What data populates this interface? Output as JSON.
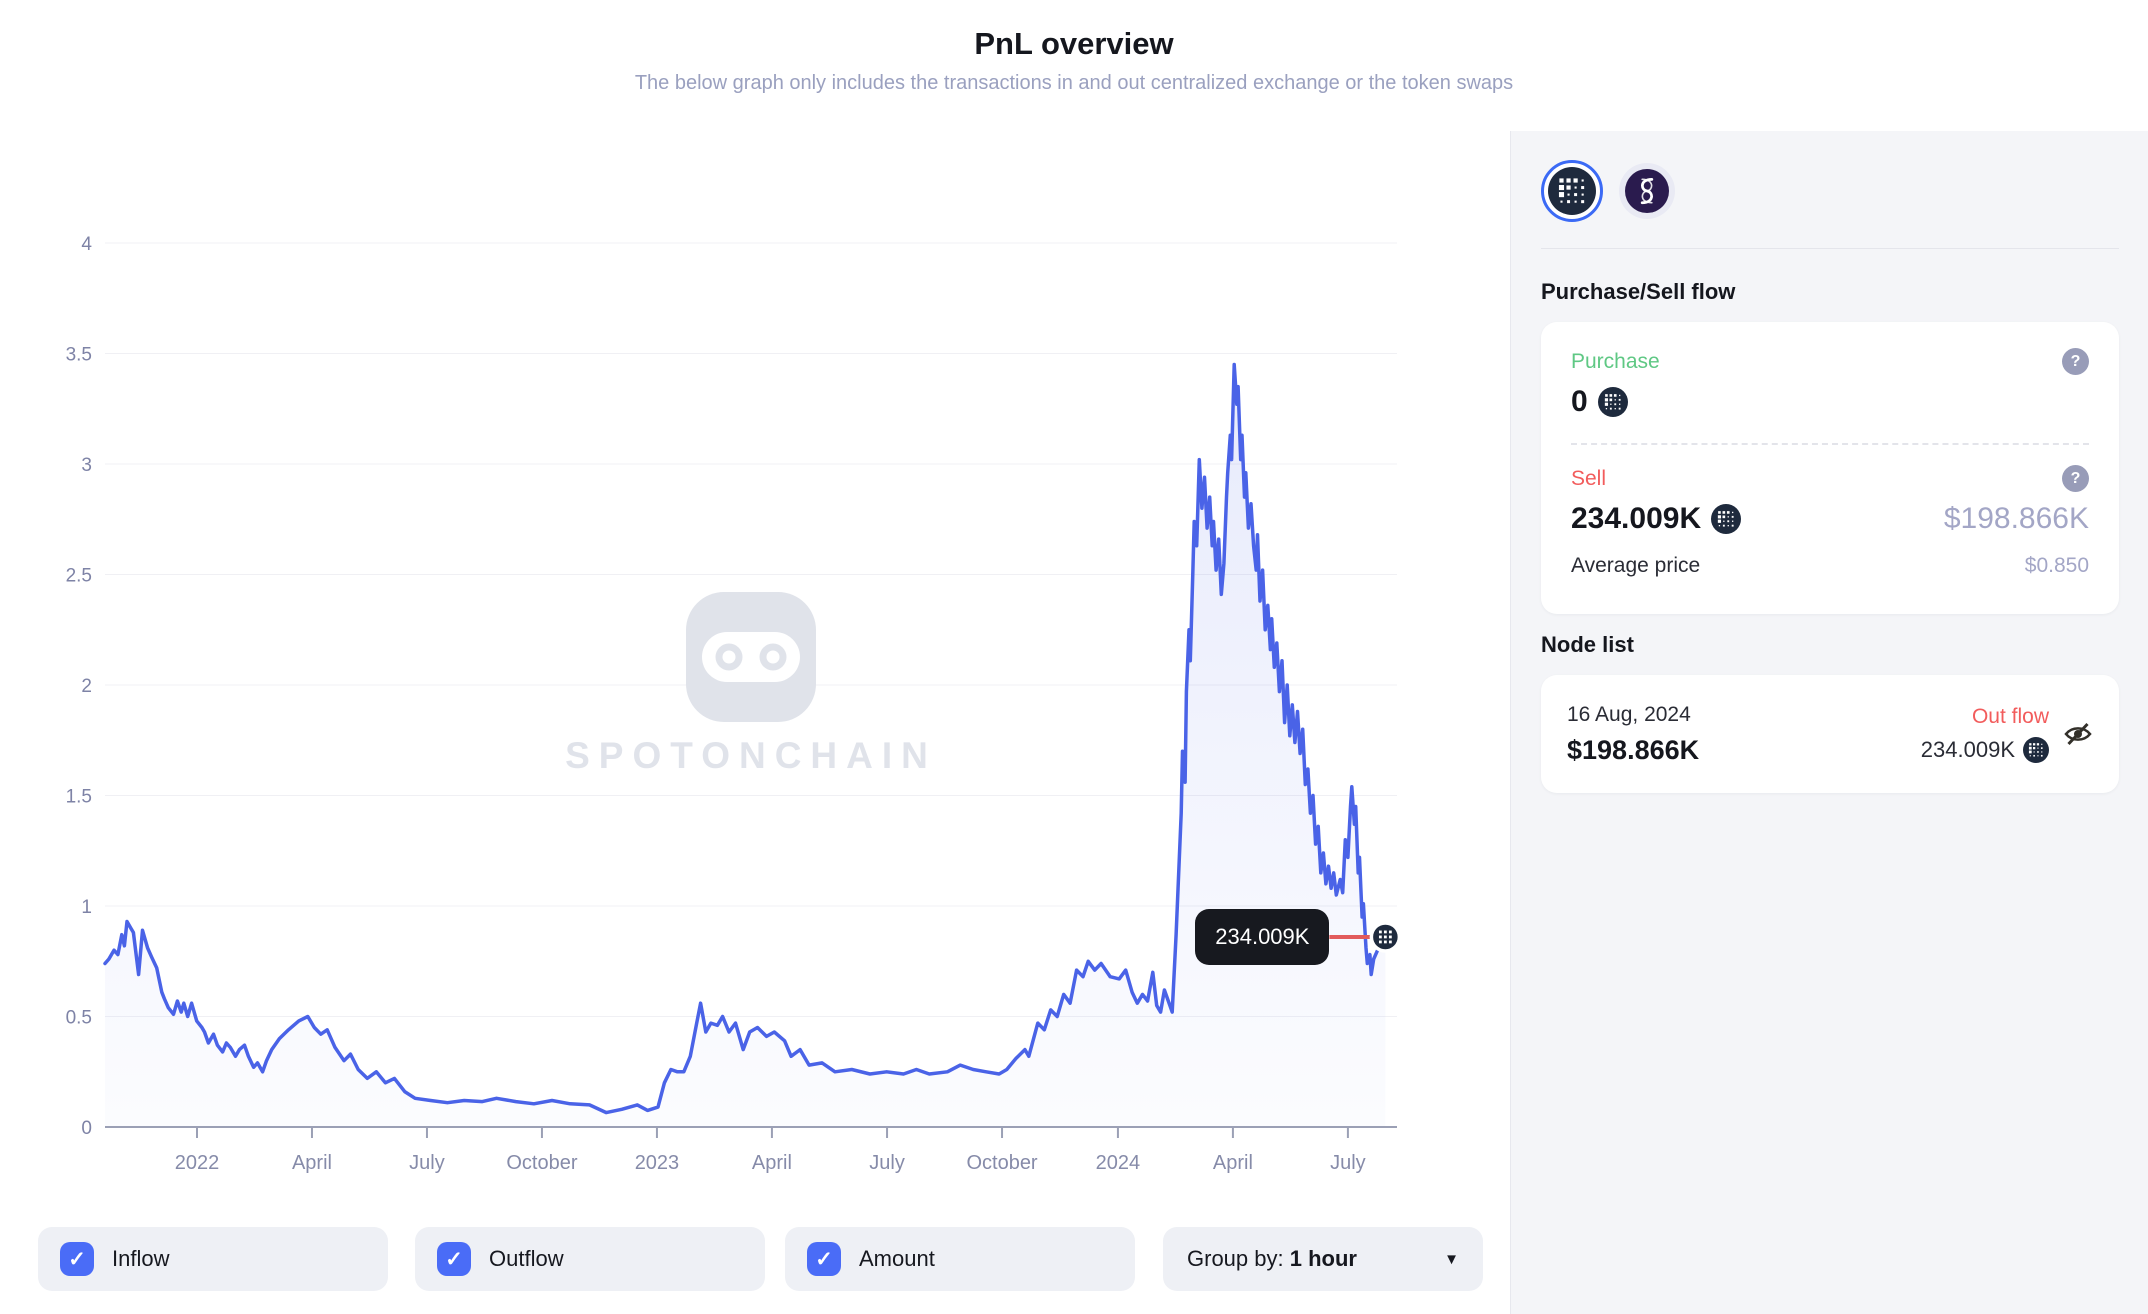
{
  "header": {
    "title": "PnL overview",
    "subtitle": "The below graph only includes the transactions in and out centralized exchange or the token swaps"
  },
  "colors": {
    "line": "#4a63e7",
    "accent_blue": "#4a6cf7",
    "green": "#5fc884",
    "red": "#f25c5c",
    "muted_purple": "#a3a6c6",
    "panel_bg": "#f4f5f8",
    "tooltip_bg": "#17191f"
  },
  "watermark": {
    "brand": "SPOTONCHAIN",
    "icon": "spotonchain-logo"
  },
  "chart_data": {
    "type": "line",
    "title": "PnL overview price history",
    "xlabel": "",
    "ylabel": "",
    "ylim": [
      0,
      4
    ],
    "grid": true,
    "legend_position": "none",
    "yticks": [
      0,
      0.5,
      1,
      1.5,
      2,
      2.5,
      3,
      3.5,
      4
    ],
    "ytick_labels": [
      "0",
      "0.5",
      "1",
      "1.5",
      "2",
      "2.5",
      "3",
      "3.5",
      "4"
    ],
    "xticks": [
      {
        "label": "2022",
        "t": 0.0712
      },
      {
        "label": "April",
        "t": 0.1602
      },
      {
        "label": "July",
        "t": 0.2492
      },
      {
        "label": "October",
        "t": 0.3382
      },
      {
        "label": "2023",
        "t": 0.4272
      },
      {
        "label": "April",
        "t": 0.5162
      },
      {
        "label": "July",
        "t": 0.6053
      },
      {
        "label": "October",
        "t": 0.6943
      },
      {
        "label": "2024",
        "t": 0.784
      },
      {
        "label": "April",
        "t": 0.873
      },
      {
        "label": "July",
        "t": 0.962
      }
    ],
    "series": [
      {
        "name": "price",
        "points": [
          [
            0.0,
            0.74
          ],
          [
            0.003,
            0.76
          ],
          [
            0.007,
            0.8
          ],
          [
            0.01,
            0.78
          ],
          [
            0.013,
            0.87
          ],
          [
            0.015,
            0.82
          ],
          [
            0.017,
            0.93
          ],
          [
            0.02,
            0.9
          ],
          [
            0.022,
            0.88
          ],
          [
            0.026,
            0.69
          ],
          [
            0.029,
            0.89
          ],
          [
            0.033,
            0.81
          ],
          [
            0.036,
            0.77
          ],
          [
            0.04,
            0.72
          ],
          [
            0.044,
            0.61
          ],
          [
            0.046,
            0.58
          ],
          [
            0.049,
            0.54
          ],
          [
            0.053,
            0.51
          ],
          [
            0.056,
            0.57
          ],
          [
            0.059,
            0.52
          ],
          [
            0.061,
            0.56
          ],
          [
            0.064,
            0.5
          ],
          [
            0.067,
            0.56
          ],
          [
            0.071,
            0.48
          ],
          [
            0.075,
            0.45
          ],
          [
            0.077,
            0.43
          ],
          [
            0.08,
            0.38
          ],
          [
            0.084,
            0.42
          ],
          [
            0.087,
            0.37
          ],
          [
            0.091,
            0.34
          ],
          [
            0.094,
            0.38
          ],
          [
            0.097,
            0.36
          ],
          [
            0.101,
            0.32
          ],
          [
            0.104,
            0.35
          ],
          [
            0.108,
            0.37
          ],
          [
            0.111,
            0.32
          ],
          [
            0.115,
            0.27
          ],
          [
            0.118,
            0.29
          ],
          [
            0.122,
            0.25
          ],
          [
            0.125,
            0.3
          ],
          [
            0.129,
            0.35
          ],
          [
            0.135,
            0.4
          ],
          [
            0.142,
            0.44
          ],
          [
            0.15,
            0.48
          ],
          [
            0.157,
            0.5
          ],
          [
            0.162,
            0.45
          ],
          [
            0.167,
            0.42
          ],
          [
            0.172,
            0.44
          ],
          [
            0.178,
            0.36
          ],
          [
            0.185,
            0.3
          ],
          [
            0.19,
            0.33
          ],
          [
            0.196,
            0.26
          ],
          [
            0.203,
            0.22
          ],
          [
            0.21,
            0.25
          ],
          [
            0.217,
            0.2
          ],
          [
            0.224,
            0.22
          ],
          [
            0.232,
            0.16
          ],
          [
            0.24,
            0.13
          ],
          [
            0.252,
            0.12
          ],
          [
            0.265,
            0.11
          ],
          [
            0.278,
            0.12
          ],
          [
            0.292,
            0.115
          ],
          [
            0.303,
            0.13
          ],
          [
            0.318,
            0.115
          ],
          [
            0.332,
            0.105
          ],
          [
            0.346,
            0.12
          ],
          [
            0.36,
            0.105
          ],
          [
            0.375,
            0.1
          ],
          [
            0.388,
            0.065
          ],
          [
            0.4,
            0.08
          ],
          [
            0.412,
            0.1
          ],
          [
            0.42,
            0.075
          ],
          [
            0.428,
            0.09
          ],
          [
            0.433,
            0.2
          ],
          [
            0.438,
            0.26
          ],
          [
            0.443,
            0.25
          ],
          [
            0.448,
            0.25
          ],
          [
            0.453,
            0.32
          ],
          [
            0.458,
            0.47
          ],
          [
            0.461,
            0.56
          ],
          [
            0.465,
            0.43
          ],
          [
            0.469,
            0.47
          ],
          [
            0.474,
            0.46
          ],
          [
            0.478,
            0.5
          ],
          [
            0.483,
            0.43
          ],
          [
            0.488,
            0.47
          ],
          [
            0.494,
            0.35
          ],
          [
            0.499,
            0.43
          ],
          [
            0.505,
            0.45
          ],
          [
            0.512,
            0.41
          ],
          [
            0.518,
            0.43
          ],
          [
            0.526,
            0.39
          ],
          [
            0.531,
            0.32
          ],
          [
            0.538,
            0.35
          ],
          [
            0.545,
            0.28
          ],
          [
            0.555,
            0.29
          ],
          [
            0.565,
            0.25
          ],
          [
            0.578,
            0.26
          ],
          [
            0.592,
            0.24
          ],
          [
            0.605,
            0.25
          ],
          [
            0.618,
            0.24
          ],
          [
            0.628,
            0.26
          ],
          [
            0.638,
            0.24
          ],
          [
            0.652,
            0.25
          ],
          [
            0.662,
            0.28
          ],
          [
            0.672,
            0.26
          ],
          [
            0.682,
            0.25
          ],
          [
            0.692,
            0.24
          ],
          [
            0.698,
            0.26
          ],
          [
            0.705,
            0.31
          ],
          [
            0.712,
            0.35
          ],
          [
            0.715,
            0.32
          ],
          [
            0.722,
            0.47
          ],
          [
            0.727,
            0.44
          ],
          [
            0.732,
            0.53
          ],
          [
            0.737,
            0.5
          ],
          [
            0.742,
            0.6
          ],
          [
            0.747,
            0.56
          ],
          [
            0.752,
            0.71
          ],
          [
            0.757,
            0.68
          ],
          [
            0.761,
            0.75
          ],
          [
            0.766,
            0.71
          ],
          [
            0.771,
            0.74
          ],
          [
            0.778,
            0.68
          ],
          [
            0.785,
            0.67
          ],
          [
            0.79,
            0.71
          ],
          [
            0.795,
            0.61
          ],
          [
            0.799,
            0.56
          ],
          [
            0.803,
            0.6
          ],
          [
            0.807,
            0.57
          ],
          [
            0.811,
            0.7
          ],
          [
            0.814,
            0.55
          ],
          [
            0.817,
            0.52
          ],
          [
            0.82,
            0.62
          ],
          [
            0.823,
            0.57
          ],
          [
            0.826,
            0.52
          ],
          [
            0.829,
            0.87
          ],
          [
            0.831,
            1.15
          ],
          [
            0.833,
            1.42
          ],
          [
            0.834,
            1.7
          ],
          [
            0.836,
            1.56
          ],
          [
            0.837,
            1.97
          ],
          [
            0.839,
            2.25
          ],
          [
            0.84,
            2.11
          ],
          [
            0.842,
            2.52
          ],
          [
            0.843,
            2.74
          ],
          [
            0.845,
            2.63
          ],
          [
            0.847,
            3.02
          ],
          [
            0.849,
            2.8
          ],
          [
            0.851,
            2.94
          ],
          [
            0.853,
            2.71
          ],
          [
            0.855,
            2.85
          ],
          [
            0.857,
            2.63
          ],
          [
            0.858,
            2.74
          ],
          [
            0.86,
            2.52
          ],
          [
            0.862,
            2.66
          ],
          [
            0.864,
            2.41
          ],
          [
            0.866,
            2.55
          ],
          [
            0.868,
            2.85
          ],
          [
            0.869,
            2.96
          ],
          [
            0.871,
            3.13
          ],
          [
            0.872,
            3.02
          ],
          [
            0.874,
            3.45
          ],
          [
            0.876,
            3.27
          ],
          [
            0.877,
            3.35
          ],
          [
            0.879,
            3.02
          ],
          [
            0.88,
            3.13
          ],
          [
            0.882,
            2.85
          ],
          [
            0.883,
            2.96
          ],
          [
            0.885,
            2.71
          ],
          [
            0.887,
            2.82
          ],
          [
            0.889,
            2.63
          ],
          [
            0.891,
            2.52
          ],
          [
            0.892,
            2.68
          ],
          [
            0.894,
            2.38
          ],
          [
            0.896,
            2.52
          ],
          [
            0.898,
            2.25
          ],
          [
            0.9,
            2.36
          ],
          [
            0.902,
            2.16
          ],
          [
            0.903,
            2.3
          ],
          [
            0.905,
            2.08
          ],
          [
            0.907,
            2.19
          ],
          [
            0.909,
            1.97
          ],
          [
            0.911,
            2.11
          ],
          [
            0.913,
            1.83
          ],
          [
            0.915,
            2.0
          ],
          [
            0.917,
            1.77
          ],
          [
            0.919,
            1.91
          ],
          [
            0.921,
            1.74
          ],
          [
            0.923,
            1.88
          ],
          [
            0.925,
            1.69
          ],
          [
            0.927,
            1.8
          ],
          [
            0.929,
            1.55
          ],
          [
            0.931,
            1.62
          ],
          [
            0.933,
            1.42
          ],
          [
            0.935,
            1.5
          ],
          [
            0.937,
            1.28
          ],
          [
            0.939,
            1.36
          ],
          [
            0.941,
            1.15
          ],
          [
            0.943,
            1.24
          ],
          [
            0.945,
            1.1
          ],
          [
            0.947,
            1.18
          ],
          [
            0.949,
            1.08
          ],
          [
            0.951,
            1.15
          ],
          [
            0.953,
            1.05
          ],
          [
            0.956,
            1.12
          ],
          [
            0.958,
            1.06
          ],
          [
            0.96,
            1.3
          ],
          [
            0.962,
            1.22
          ],
          [
            0.964,
            1.45
          ],
          [
            0.965,
            1.54
          ],
          [
            0.967,
            1.37
          ],
          [
            0.968,
            1.45
          ],
          [
            0.97,
            1.15
          ],
          [
            0.971,
            1.22
          ],
          [
            0.973,
            0.95
          ],
          [
            0.974,
            1.01
          ],
          [
            0.976,
            0.81
          ],
          [
            0.977,
            0.74
          ],
          [
            0.979,
            0.78
          ],
          [
            0.98,
            0.69
          ],
          [
            0.982,
            0.76
          ],
          [
            0.985,
            0.8
          ],
          [
            0.988,
            0.84
          ],
          [
            0.991,
            0.86
          ]
        ]
      }
    ],
    "tooltip": {
      "label": "234.009K",
      "t": 0.991,
      "value": 0.86
    }
  },
  "toggles": [
    {
      "label": "Inflow",
      "checked": true
    },
    {
      "label": "Outflow",
      "checked": true
    },
    {
      "label": "Amount",
      "checked": true
    }
  ],
  "group_by": {
    "label": "Group by:",
    "value": "1 hour"
  },
  "panel": {
    "tokens": [
      {
        "name": "fetch-ai token",
        "selected": true
      },
      {
        "name": "singularitynet token",
        "selected": false
      }
    ],
    "flow_section": {
      "title": "Purchase/Sell flow",
      "purchase": {
        "label": "Purchase",
        "amount": "0"
      },
      "sell": {
        "label": "Sell",
        "amount": "234.009K",
        "usd": "$198.866K"
      },
      "average_price": {
        "label": "Average price",
        "value": "$0.850"
      }
    },
    "node_list": {
      "title": "Node list",
      "nodes": [
        {
          "date": "16 Aug, 2024",
          "usd": "$198.866K",
          "direction": "Out flow",
          "amount": "234.009K"
        }
      ]
    }
  }
}
